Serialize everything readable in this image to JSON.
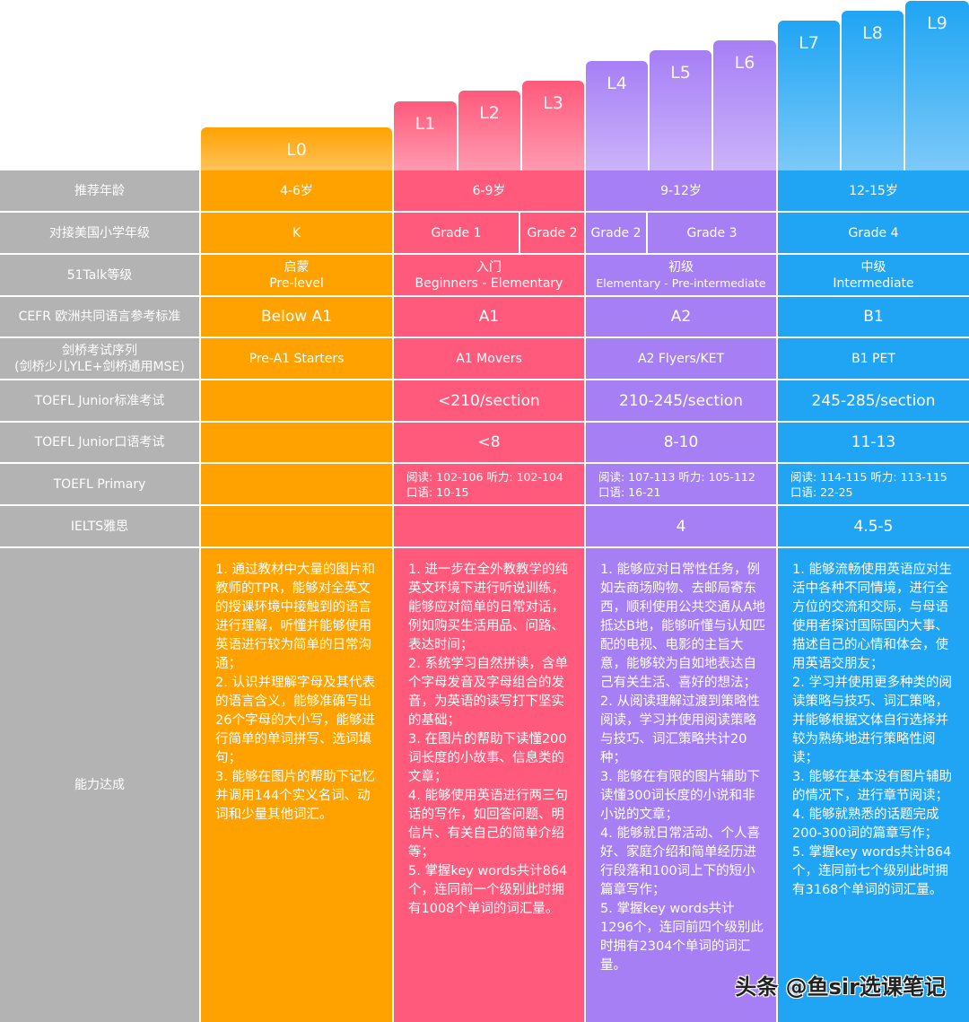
{
  "colors": {
    "L0": "#ffa200",
    "L1_3": "#ff5a7b",
    "L4_6": "#a67ff5",
    "L7_9": "#1fa5f4",
    "label": "#b3b3b3"
  },
  "levels": [
    "L0",
    "L1",
    "L2",
    "L3",
    "L4",
    "L5",
    "L6",
    "L7",
    "L8",
    "L9"
  ],
  "rows": {
    "age": {
      "label": "推荐年龄",
      "values": [
        "4-6岁",
        "6-9岁",
        "9-12岁",
        "12-15岁"
      ]
    },
    "grade": {
      "label": "对接美国小学年级",
      "values": [
        "K",
        "Grade 1",
        "Grade 2",
        "Grade 2",
        "Grade 3",
        "Grade 4"
      ]
    },
    "level51": {
      "label": "51Talk等级",
      "values": [
        [
          "启蒙",
          "Pre-level"
        ],
        [
          "入门",
          "Beginners - Elementary"
        ],
        [
          "初级",
          "Elementary - Pre-intermediate"
        ],
        [
          "中级",
          "Intermediate"
        ]
      ]
    },
    "cefr": {
      "label": "CEFR 欧洲共同语言参考标准",
      "values": [
        "Below A1",
        "A1",
        "A2",
        "B1"
      ]
    },
    "cambridge": {
      "label": "剑桥考试序列",
      "label2": "(剑桥少儿YLE+剑桥通用MSE)",
      "values": [
        "Pre-A1 Starters",
        "A1 Movers",
        "A2 Flyers/KET",
        "B1 PET"
      ]
    },
    "toeflJr": {
      "label": "TOEFL Junior标准考试",
      "values": [
        "",
        "<210/section",
        "210-245/section",
        "245-285/section"
      ]
    },
    "toeflJrOral": {
      "label": "TOEFL Junior口语考试",
      "values": [
        "",
        "<8",
        "8-10",
        "11-13"
      ]
    },
    "toeflPrimary": {
      "label": "TOEFL Primary",
      "values": [
        [
          "",
          ""
        ],
        [
          "阅读: 102-106   听力: 102-104",
          "口语: 10-15"
        ],
        [
          "阅读: 107-113   听力: 105-112",
          "口语: 16-21"
        ],
        [
          "阅读: 114-115   听力: 113-115",
          "口语: 22-25"
        ]
      ]
    },
    "ielts": {
      "label": "IELTS雅思",
      "values": [
        "",
        "",
        "4",
        "4.5-5"
      ]
    },
    "ability": {
      "label": "能力达成",
      "values": [
        "1. 通过教材中大量的图片和教师的TPR，能够对全英文的授课环境中接触到的语言进行理解，听懂并能够使用英语进行较为简单的日常沟通；\n2. 认识并理解字母及其代表的语言含义，能够准确写出26个字母的大小写，能够进行简单的单词拼写、选词填句；\n3. 能够在图片的帮助下记忆并调用144个实义名词、动词和少量其他词汇。",
        "1. 进一步在全外教教学的纯英文环境下进行听说训练，能够应对简单的日常对话，例如购买生活用品、问路、表达时间；\n2. 系统学习自然拼读，含单个字母发音及字母组合的发音，为英语的读写打下坚实的基础；\n3. 在图片的帮助下读懂200词长度的小故事、信息类的文章；\n4. 能够使用英语进行两三句话的写作，如回答问题、明信片、有关自己的简单介绍等；\n5. 掌握key words共计864个，连同前一个级别此时拥有1008个单词的词汇量。",
        "1. 能够应对日常性任务，例如去商场购物、去邮局寄东西，顺利使用公共交通从A地抵达B地，能够听懂与认知匹配的电视、电影的主旨大意，能够较为自如地表达自己有关生活、喜好的想法；\n2. 从阅读理解过渡到策略性阅读，学习并使用阅读策略与技巧、词汇策略共计20种；\n3. 能够在有限的图片辅助下读懂300词长度的小说和非小说的文章；\n4. 能够就日常活动、个人喜好、家庭介绍和简单经历进行段落和100词上下的短小篇章写作；\n5. 掌握key words共计1296个，连同前四个级别此时拥有2304个单词的词汇量。",
        "1. 能够流畅使用英语应对生活中各种不同情境，进行全方位的交流和交际，与母语使用者探讨国际国内大事、描述自己的心情和体会，使用英语交朋友；\n2. 学习并使用更多种类的阅读策略与技巧、词汇策略，并能够根据文体自行选择并较为熟练地进行策略性阅读；\n3. 能够在基本没有图片辅助的情况下，进行章节阅读；\n4. 能够就熟悉的话题完成200-300词的篇章写作；\n5. 掌握key words共计864个，连同前七个级别此时拥有3168个单词的词汇量。"
      ]
    }
  },
  "watermark": "头条 @鱼sir选课笔记"
}
